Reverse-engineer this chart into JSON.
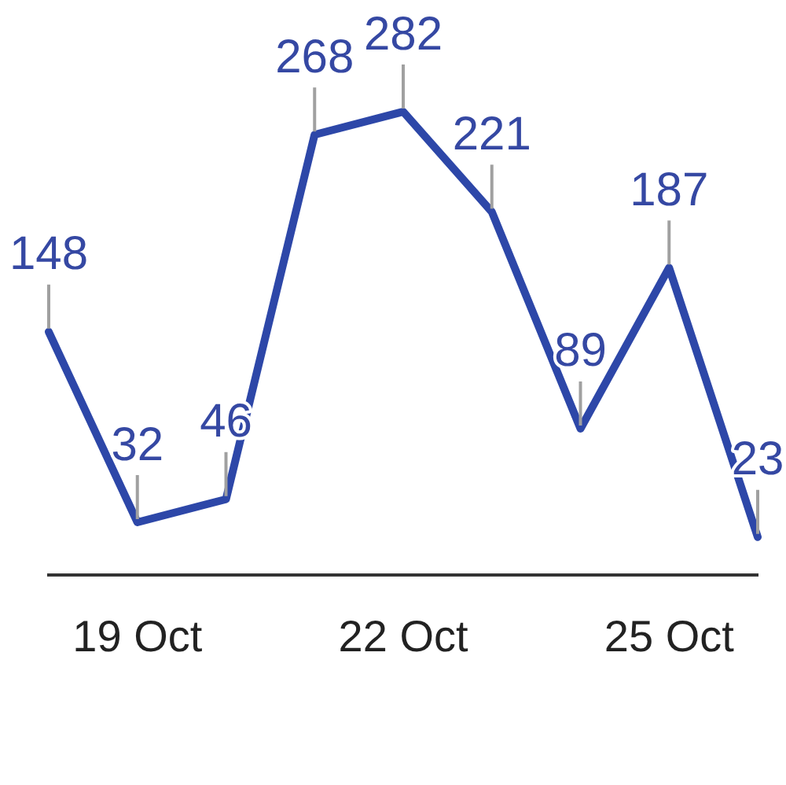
{
  "chart_data": {
    "type": "line",
    "x": [
      "--10-18",
      "--10-19",
      "--10-20",
      "--10-21",
      "--10-22",
      "--10-23",
      "--10-24",
      "--10-25",
      "--10-26"
    ],
    "series": [
      {
        "color": "#2d47a8",
        "values": [
          148,
          32,
          46,
          268,
          282,
          221,
          89,
          187,
          23
        ]
      }
    ],
    "xlim": [
      "--10-18",
      "--10-26"
    ],
    "xticks": [
      {
        "value": "--10-19",
        "label": "19 Oct"
      },
      {
        "value": "--10-22",
        "label": "22 Oct"
      },
      {
        "value": "--10-25",
        "label": "25 Oct"
      }
    ],
    "tick_labels": "x",
    "data_labels": true,
    "grid": false,
    "legend": false,
    "marker": "none"
  }
}
